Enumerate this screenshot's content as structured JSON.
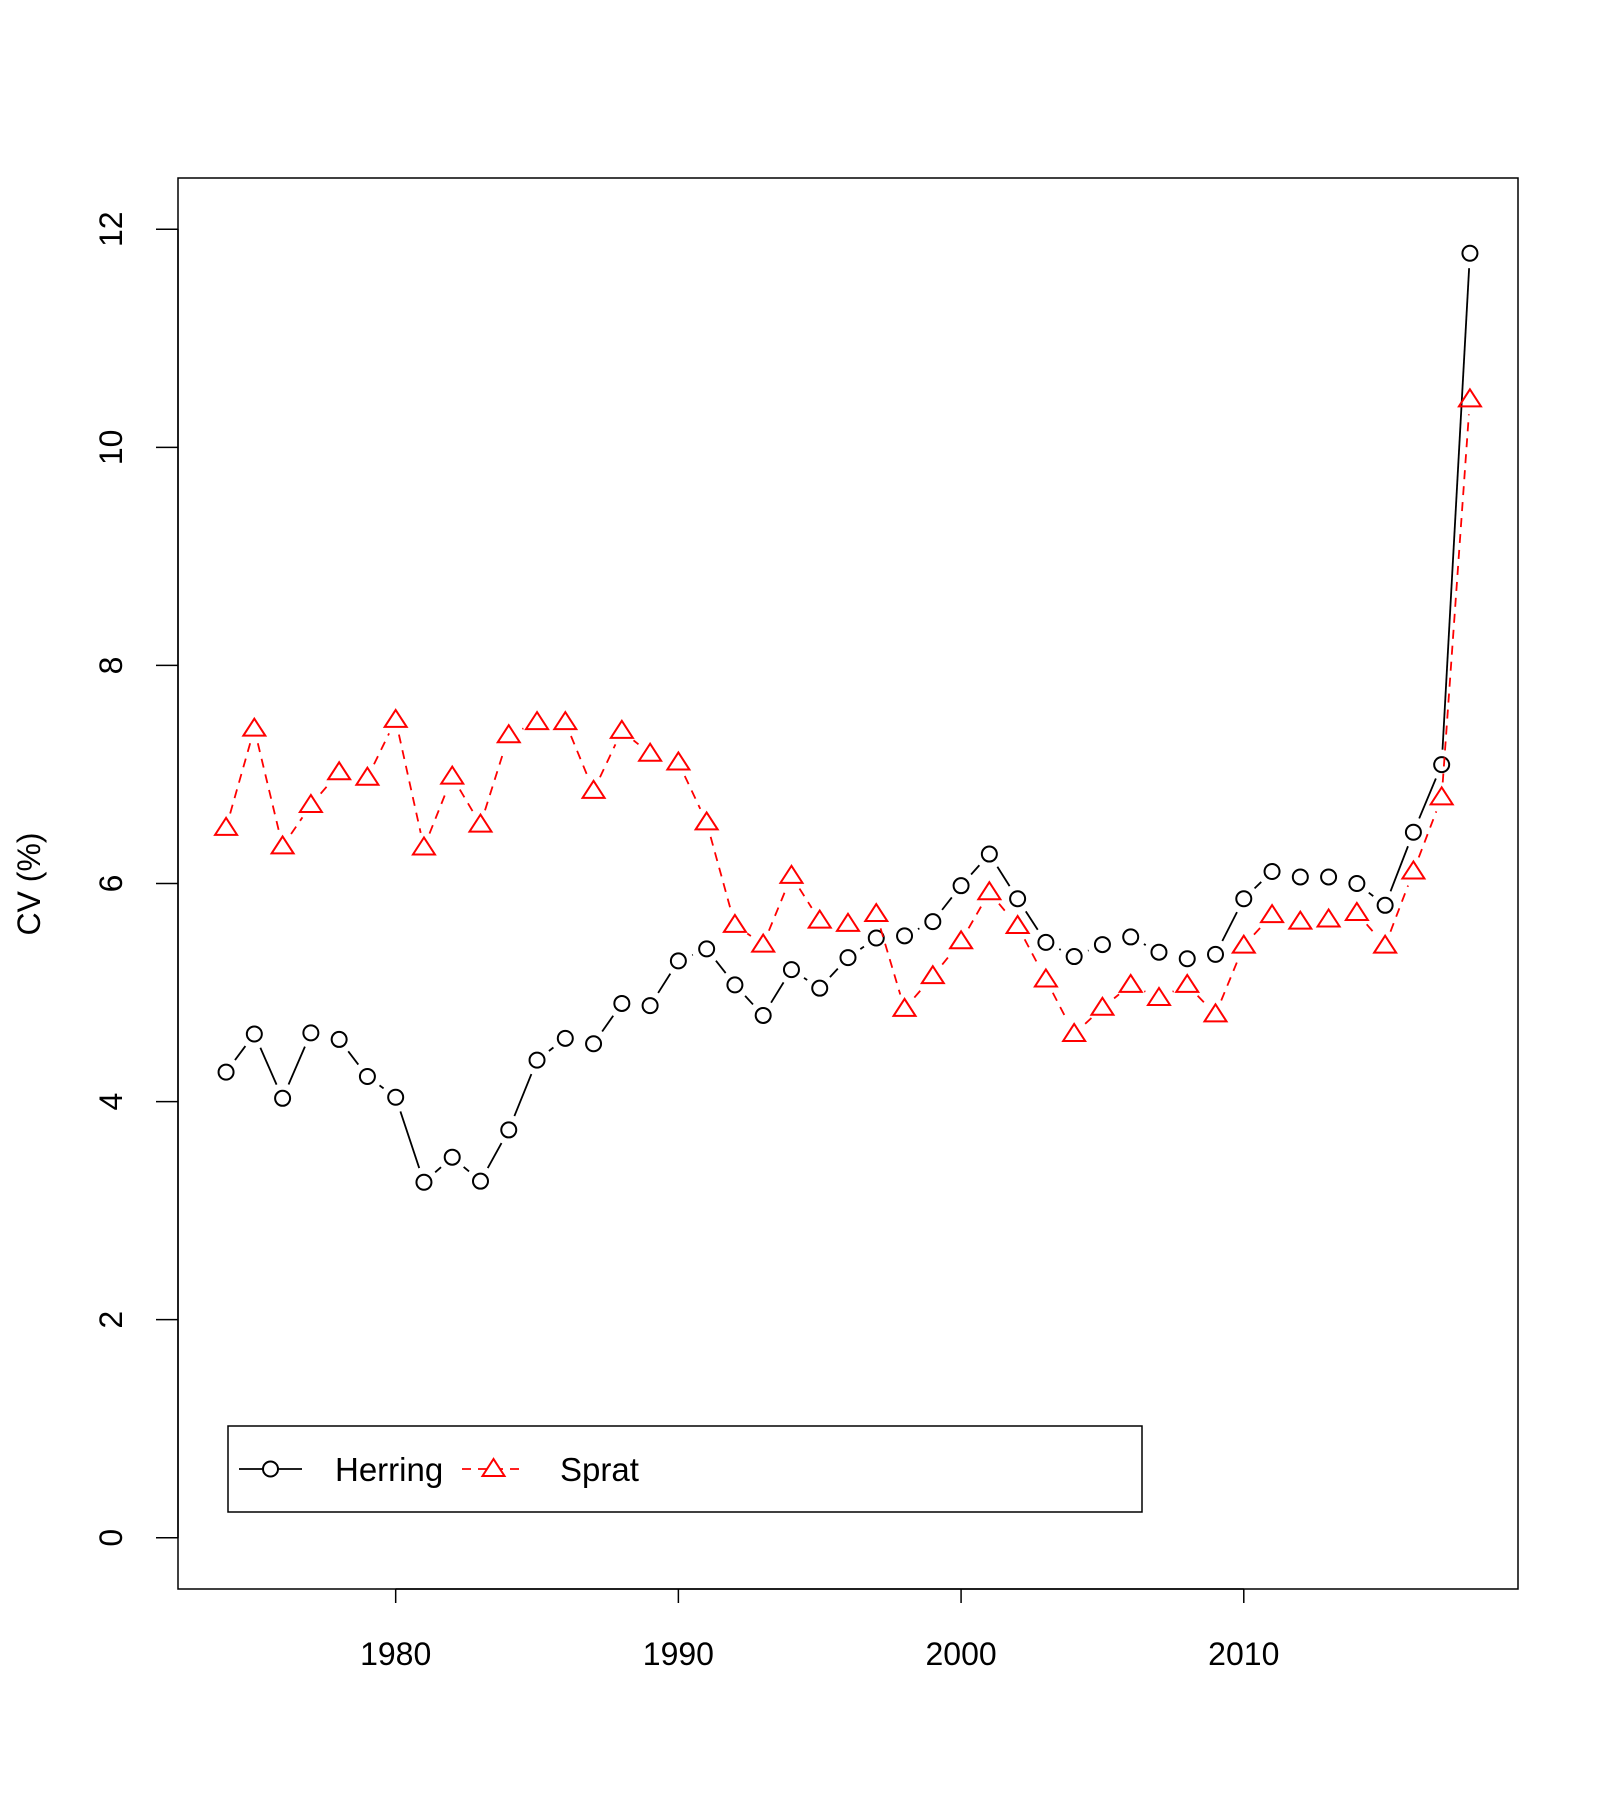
{
  "chart_data": {
    "type": "line",
    "title": "",
    "xlabel": "",
    "ylabel": "CV (%)",
    "xlim": [
      1972.3,
      2019.7
    ],
    "ylim": [
      -0.47,
      12.47
    ],
    "x_ticks": [
      "1980",
      "1990",
      "2000",
      "2010"
    ],
    "y_ticks": [
      "0",
      "2",
      "4",
      "6",
      "8",
      "10",
      "12"
    ],
    "legend_position": "bottom-left",
    "grid": false,
    "x": [
      1974,
      1975,
      1976,
      1977,
      1978,
      1979,
      1980,
      1981,
      1982,
      1983,
      1984,
      1985,
      1986,
      1987,
      1988,
      1989,
      1990,
      1991,
      1992,
      1993,
      1994,
      1995,
      1996,
      1997,
      1998,
      1999,
      2000,
      2001,
      2002,
      2003,
      2004,
      2005,
      2006,
      2007,
      2008,
      2009,
      2010,
      2011,
      2012,
      2013,
      2014,
      2015,
      2016,
      2017,
      2018
    ],
    "series": [
      {
        "name": "Herring",
        "color": "#000000",
        "line_style": "solid",
        "marker": "circle",
        "values": [
          4.27,
          4.62,
          4.03,
          4.63,
          4.57,
          4.23,
          4.04,
          3.26,
          3.49,
          3.27,
          3.74,
          4.38,
          4.58,
          4.53,
          4.9,
          4.88,
          5.29,
          5.4,
          5.07,
          4.79,
          5.21,
          5.04,
          5.32,
          5.5,
          5.52,
          5.65,
          5.98,
          6.27,
          5.86,
          5.46,
          5.33,
          5.44,
          5.51,
          5.37,
          5.31,
          5.35,
          5.86,
          6.11,
          6.06,
          6.06,
          6.0,
          5.8,
          6.47,
          7.09,
          11.78
        ]
      },
      {
        "name": "Sprat",
        "color": "#ff0000",
        "line_style": "dashed",
        "marker": "triangle",
        "values": [
          6.51,
          7.42,
          6.34,
          6.72,
          7.02,
          6.97,
          7.5,
          6.33,
          6.98,
          6.54,
          7.36,
          7.48,
          7.48,
          6.85,
          7.4,
          7.19,
          7.11,
          6.56,
          5.62,
          5.44,
          6.07,
          5.66,
          5.63,
          5.72,
          4.85,
          5.15,
          5.47,
          5.92,
          5.61,
          5.12,
          4.62,
          4.86,
          5.07,
          4.95,
          5.07,
          4.8,
          5.43,
          5.71,
          5.65,
          5.67,
          5.73,
          5.43,
          6.11,
          6.79,
          10.44
        ]
      }
    ]
  }
}
